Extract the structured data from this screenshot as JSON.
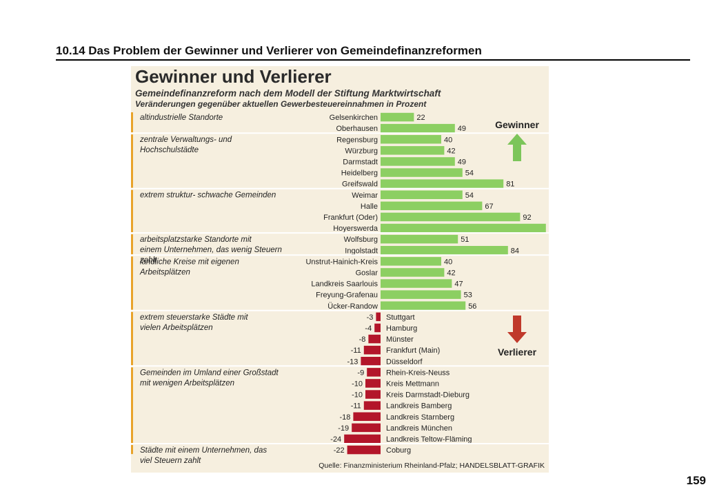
{
  "slide": {
    "title": "10.14 Das Problem der Gewinner und Verlierer von Gemeindefinanzreformen",
    "page_number": "159"
  },
  "figure": {
    "title": "Gewinner und Verlierer",
    "subtitle": "Gemeindefinanzreform nach dem Modell der Stiftung Marktwirtschaft",
    "subtitle2": "Veränderungen gegenüber aktuellen Gewerbesteuereinnahmen in Prozent",
    "gain_label": "Gewinner",
    "loss_label": "Verlierer",
    "source": "Quelle: Finanzministerium Rheinland-Pfalz; HANDELSBLATT-GRAFIK"
  },
  "colors": {
    "positive": "#8ccf62",
    "negative": "#b3162a",
    "group_marker": "#e8a32a",
    "background": "#f6efdf",
    "arrow_up": "#7cc55a",
    "arrow_down": "#c0392b"
  },
  "chart_data": {
    "type": "bar",
    "orientation": "horizontal",
    "title": "Gewinner und Verlierer",
    "unit": "Prozent",
    "xlim": [
      -24,
      109
    ],
    "groups": [
      {
        "label": "altindustrielle Standorte",
        "categories": [
          "Gelsenkirchen",
          "Oberhausen"
        ],
        "values": [
          22,
          49
        ]
      },
      {
        "label": "zentrale Verwaltungs- und Hochschulstädte",
        "categories": [
          "Regensburg",
          "Würzburg",
          "Darmstadt",
          "Heidelberg",
          "Greifswald"
        ],
        "values": [
          40,
          42,
          49,
          54,
          81
        ]
      },
      {
        "label": "extrem struktur- schwache Gemeinden",
        "categories": [
          "Weimar",
          "Halle",
          "Frankfurt (Oder)",
          "Hoyerswerda"
        ],
        "values": [
          54,
          67,
          92,
          109
        ]
      },
      {
        "label": "arbeitsplatzstarke Standorte mit einem Unternehmen, das wenig Steuern zahlt",
        "categories": [
          "Wolfsburg",
          "Ingolstadt"
        ],
        "values": [
          51,
          84
        ]
      },
      {
        "label": "ländliche Kreise mit eigenen Arbeitsplätzen",
        "categories": [
          "Unstrut-Hainich-Kreis",
          "Goslar",
          "Landkreis Saarlouis",
          "Freyung-Grafenau",
          "Ücker-Randow"
        ],
        "values": [
          40,
          42,
          47,
          53,
          56
        ]
      },
      {
        "label": "extrem steuerstarke Städte mit vielen Arbeitsplätzen",
        "categories": [
          "Stuttgart",
          "Hamburg",
          "Münster",
          "Frankfurt (Main)",
          "Düsseldorf"
        ],
        "values": [
          -3,
          -4,
          -8,
          -11,
          -13
        ]
      },
      {
        "label": "Gemeinden im Umland einer Großstadt mit wenigen Arbeitsplätzen",
        "categories": [
          "Rhein-Kreis-Neuss",
          "Kreis Mettmann",
          "Kreis Darmstadt-Dieburg",
          "Landkreis Bamberg",
          "Landkreis Starnberg",
          "Landkreis München",
          "Landkreis Teltow-Fläming"
        ],
        "values": [
          -9,
          -10,
          -10,
          -11,
          -18,
          -19,
          -24
        ]
      },
      {
        "label": "Städte mit einem Unternehmen, das viel Steuern zahlt",
        "categories": [
          "Coburg"
        ],
        "values": [
          -22
        ]
      }
    ]
  }
}
